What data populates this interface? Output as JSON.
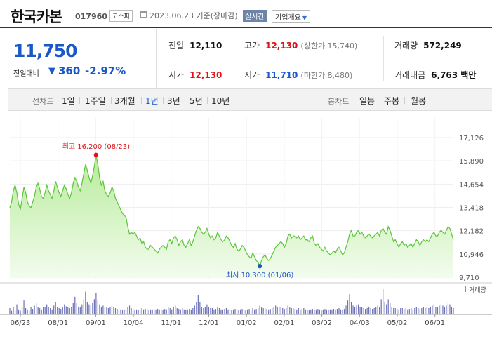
{
  "header": {
    "name": "한국카본",
    "code": "017960",
    "market": "코스피",
    "date": "2023.06.23 기준(장마감)",
    "realtime": "실시간",
    "corp_info": "기업개요"
  },
  "quote": {
    "price": "11,750",
    "change_label": "전일대비",
    "change_arrow": "▼",
    "change": "360",
    "change_pct": "-2.97%",
    "prev_label": "전일",
    "prev": "12,110",
    "open_label": "시가",
    "open": "12,130",
    "high_label": "고가",
    "high": "12,130",
    "upper_limit": "(상한가 15,740)",
    "low_label": "저가",
    "low": "11,710",
    "lower_limit": "(하한가 8,480)",
    "volume_label": "거래량",
    "volume": "572,249",
    "amount_label": "거래대금",
    "amount": "6,763 백만"
  },
  "period_bar": {
    "line_title": "선차트",
    "line_periods": [
      "1일",
      "1주일",
      "3개월",
      "1년",
      "3년",
      "5년",
      "10년"
    ],
    "active": "1년",
    "candle_title": "봉차트",
    "candle_periods": [
      "일봉",
      "주봉",
      "월봉"
    ]
  },
  "chart_data": {
    "type": "area",
    "y_ticks": [
      "17,126",
      "15,890",
      "14,654",
      "13,418",
      "12,182",
      "10,946",
      "9,710"
    ],
    "ylim": [
      9710,
      17126
    ],
    "x_ticks": [
      "06/23",
      "08/01",
      "09/01",
      "10/04",
      "11/01",
      "12/01",
      "01/02",
      "02/01",
      "03/02",
      "04/03",
      "05/02",
      "06/01"
    ],
    "max_label": "최고 16,200 (08/23)",
    "min_label": "최저 10,300 (01/06)",
    "volume_legend": "거래량",
    "series": [
      {
        "values": [
          13400,
          13700,
          14300,
          14600,
          14200,
          13600,
          13300,
          13900,
          14500,
          14200,
          13700,
          13500,
          13400,
          13700,
          14000,
          14500,
          14700,
          14400,
          14000,
          13900,
          14200,
          14600,
          14300,
          14100,
          13900,
          14300,
          14800,
          14500,
          14200,
          14000,
          14300,
          14600,
          14400,
          14100,
          13900,
          14200,
          14700,
          15000,
          14800,
          14500,
          14300,
          14700,
          15200,
          15700,
          15400,
          15000,
          14700,
          15100,
          15600,
          16200,
          15700,
          15000,
          14600,
          14800,
          14300,
          14100,
          14000,
          14200,
          14500,
          14300,
          13900,
          13700,
          13500,
          13300,
          13100,
          13000,
          12900,
          12400,
          12000,
          12100,
          12000,
          12100,
          11900,
          11700,
          11800,
          11500,
          11600,
          11300,
          11200,
          11200,
          11400,
          11300,
          11200,
          11100,
          11000,
          11200,
          11300,
          11400,
          11300,
          11200,
          11600,
          11700,
          11500,
          11800,
          11900,
          11700,
          11400,
          11600,
          11700,
          11400,
          11300,
          11500,
          11700,
          11400,
          11600,
          11900,
          12200,
          12400,
          12300,
          12100,
          12000,
          12100,
          12300,
          12000,
          11800,
          11900,
          11700,
          11800,
          12100,
          11900,
          11700,
          11600,
          11700,
          11900,
          11800,
          11600,
          11400,
          11300,
          11500,
          11200,
          11100,
          11200,
          11400,
          11300,
          11100,
          10900,
          10800,
          10700,
          11000,
          10800,
          10600,
          10500,
          10300,
          10600,
          10800,
          10900,
          10700,
          10600,
          10700,
          10900,
          11100,
          11300,
          11400,
          11500,
          11600,
          11500,
          11300,
          11500,
          11900,
          12000,
          11800,
          11900,
          11900,
          11800,
          11900,
          11700,
          11800,
          11900,
          11700,
          11700,
          11600,
          11800,
          11900,
          11500,
          11400,
          11500,
          11300,
          11200,
          11100,
          11300,
          11100,
          11000,
          10900,
          11000,
          11100,
          11000,
          11200,
          11300,
          11100,
          10900,
          11000,
          11300,
          11600,
          12000,
          12200,
          11900,
          11900,
          12100,
          12200,
          12000,
          12100,
          11900,
          11800,
          11900,
          12000,
          11900,
          11800,
          11900,
          12000,
          12100,
          11900,
          12200,
          12300,
          12100,
          12000,
          12400,
          12200,
          11900,
          11600,
          11700,
          11500,
          11300,
          11500,
          11600,
          11400,
          11500,
          11300,
          11400,
          11500,
          11300,
          11500,
          11700,
          11600,
          11400,
          11600,
          11700,
          11600,
          11700,
          11600,
          11800,
          12000,
          12100,
          11900,
          11900,
          12100,
          12200,
          12100,
          12000,
          12200,
          12400,
          12300,
          12000,
          11700
        ]
      }
    ],
    "volume": [
      0.25,
      0.15,
      0.3,
      0.2,
      0.4,
      0.2,
      0.15,
      0.3,
      0.55,
      0.25,
      0.2,
      0.18,
      0.3,
      0.22,
      0.35,
      0.45,
      0.3,
      0.25,
      0.2,
      0.3,
      0.28,
      0.4,
      0.3,
      0.25,
      0.2,
      0.35,
      0.5,
      0.3,
      0.25,
      0.22,
      0.3,
      0.4,
      0.32,
      0.28,
      0.25,
      0.3,
      0.45,
      0.7,
      0.45,
      0.3,
      0.28,
      0.4,
      0.6,
      0.9,
      0.5,
      0.4,
      0.35,
      0.45,
      0.6,
      0.85,
      0.55,
      0.4,
      0.3,
      0.35,
      0.3,
      0.28,
      0.25,
      0.3,
      0.35,
      0.3,
      0.25,
      0.22,
      0.2,
      0.2,
      0.18,
      0.2,
      0.18,
      0.3,
      0.35,
      0.25,
      0.2,
      0.18,
      0.2,
      0.18,
      0.2,
      0.25,
      0.2,
      0.22,
      0.2,
      0.18,
      0.2,
      0.2,
      0.18,
      0.2,
      0.22,
      0.2,
      0.18,
      0.2,
      0.22,
      0.2,
      0.3,
      0.25,
      0.2,
      0.3,
      0.35,
      0.25,
      0.22,
      0.2,
      0.25,
      0.2,
      0.18,
      0.2,
      0.22,
      0.2,
      0.25,
      0.35,
      0.5,
      0.75,
      0.5,
      0.3,
      0.25,
      0.3,
      0.4,
      0.3,
      0.25,
      0.25,
      0.2,
      0.22,
      0.3,
      0.25,
      0.2,
      0.2,
      0.22,
      0.25,
      0.2,
      0.2,
      0.18,
      0.2,
      0.22,
      0.2,
      0.18,
      0.2,
      0.22,
      0.2,
      0.18,
      0.2,
      0.22,
      0.2,
      0.25,
      0.2,
      0.22,
      0.25,
      0.35,
      0.3,
      0.25,
      0.25,
      0.22,
      0.2,
      0.22,
      0.25,
      0.3,
      0.35,
      0.3,
      0.3,
      0.3,
      0.25,
      0.22,
      0.25,
      0.35,
      0.3,
      0.25,
      0.25,
      0.22,
      0.2,
      0.25,
      0.2,
      0.22,
      0.25,
      0.2,
      0.2,
      0.18,
      0.2,
      0.22,
      0.2,
      0.2,
      0.22,
      0.2,
      0.18,
      0.2,
      0.22,
      0.2,
      0.18,
      0.2,
      0.2,
      0.22,
      0.2,
      0.22,
      0.25,
      0.2,
      0.2,
      0.22,
      0.35,
      0.55,
      0.8,
      0.5,
      0.35,
      0.3,
      0.35,
      0.4,
      0.3,
      0.3,
      0.25,
      0.22,
      0.25,
      0.3,
      0.25,
      0.22,
      0.25,
      0.3,
      0.35,
      0.3,
      0.6,
      1.0,
      0.5,
      0.4,
      0.6,
      0.45,
      0.3,
      0.25,
      0.25,
      0.22,
      0.2,
      0.25,
      0.25,
      0.22,
      0.25,
      0.2,
      0.22,
      0.25,
      0.2,
      0.25,
      0.3,
      0.25,
      0.22,
      0.25,
      0.28,
      0.25,
      0.28,
      0.25,
      0.3,
      0.35,
      0.4,
      0.3,
      0.3,
      0.35,
      0.4,
      0.35,
      0.3,
      0.35,
      0.45,
      0.4,
      0.3,
      0.25
    ]
  }
}
